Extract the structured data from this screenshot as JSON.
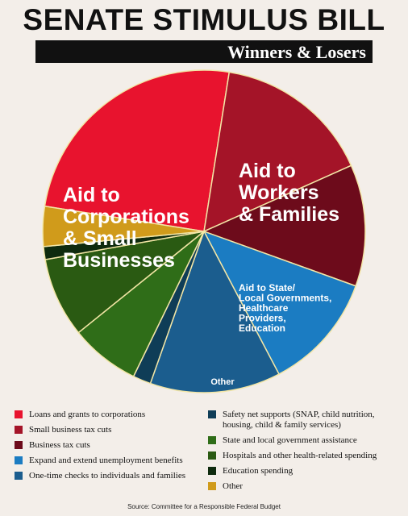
{
  "title": "SENATE STIMULUS BILL",
  "subtitle": "Winners & Losers",
  "source": "Source: Committee for a Responsible Federal Budget",
  "chart_data": {
    "type": "pie",
    "series": [
      {
        "name": "Loans and grants to corporations",
        "value": 25.0,
        "color": "#e8132e"
      },
      {
        "name": "Small business tax cuts",
        "value": 15.8,
        "color": "#a41428"
      },
      {
        "name": "Business tax cuts",
        "value": 12.2,
        "color": "#6d0b1b"
      },
      {
        "name": "Expand and extend unemployment benefits",
        "value": 11.8,
        "color": "#1b7cc2"
      },
      {
        "name": "One-time checks to individuals and families",
        "value": 13.1,
        "color": "#1b5d8e"
      },
      {
        "name": "Safety net supports (SNAP, child nutrition, housing, child & family services)",
        "value": 1.8,
        "color": "#0f3d57"
      },
      {
        "name": "State and local government assistance",
        "value": 7.0,
        "color": "#2f6d18"
      },
      {
        "name": "Hospitals and other health-related spending",
        "value": 8.0,
        "color": "#2a5a12"
      },
      {
        "name": "Education spending",
        "value": 1.3,
        "color": "#0e2b0e"
      },
      {
        "name": "Other",
        "value": 4.0,
        "color": "#d09b1b"
      }
    ],
    "group_labels": [
      {
        "text": [
          "Aid to",
          "Corporations",
          "& Small",
          "Businesses"
        ]
      },
      {
        "text": [
          "Aid to",
          "Workers",
          "& Families"
        ]
      },
      {
        "text": [
          "Aid to State/",
          "Local Governments,",
          "Healthcare",
          "Providers,",
          "Education"
        ]
      },
      {
        "text": [
          "Other"
        ]
      }
    ]
  }
}
